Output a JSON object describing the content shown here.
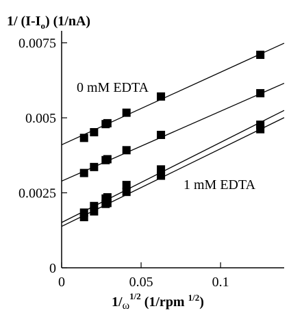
{
  "chart_data": {
    "type": "scatter",
    "ylabel": {
      "main": "1/ (I-I",
      "sub": "o",
      "rest": ") (1/nA)"
    },
    "xlabel": {
      "main": "1/",
      "omega": "ω",
      "sup1": "1/2",
      "rest": " (1/rpm ",
      "sup2": "1/2",
      "close": ")"
    },
    "x_tick_labels": [
      "0",
      "0.05",
      "0.1"
    ],
    "x_ticks": [
      0,
      0.05,
      0.1
    ],
    "y_tick_labels": [
      "0",
      "0.0025",
      "0.005",
      "0.0075"
    ],
    "y_ticks": [
      0,
      0.0025,
      0.005,
      0.0075
    ],
    "xlim": [
      0,
      0.14
    ],
    "ylim": [
      0,
      0.0079
    ],
    "annotations": {
      "top": "0 mM EDTA",
      "bottom": "1 mM EDTA"
    },
    "series": [
      {
        "x": [
          0.0141,
          0.0204,
          0.0277,
          0.0288,
          0.0408,
          0.0625,
          0.125
        ],
        "y": [
          0.00433,
          0.00452,
          0.00479,
          0.00482,
          0.00517,
          0.00571,
          0.0071
        ],
        "fit": {
          "intercept": 0.0041,
          "slope": 0.0242
        }
      },
      {
        "x": [
          0.0141,
          0.0204,
          0.0277,
          0.0288,
          0.0408,
          0.0625,
          0.125
        ],
        "y": [
          0.00316,
          0.00336,
          0.00359,
          0.00362,
          0.00392,
          0.00443,
          0.00582
        ],
        "fit": {
          "intercept": 0.00289,
          "slope": 0.0233
        }
      },
      {
        "x": [
          0.0141,
          0.0204,
          0.0277,
          0.0288,
          0.0408,
          0.0625,
          0.125
        ],
        "y": [
          0.00184,
          0.00206,
          0.00231,
          0.00235,
          0.00276,
          0.00328,
          0.00477
        ],
        "fit": {
          "intercept": 0.00151,
          "slope": 0.0267
        }
      },
      {
        "x": [
          0.0141,
          0.0204,
          0.0277,
          0.0288,
          0.0408,
          0.0625,
          0.125
        ],
        "y": [
          0.00169,
          0.00188,
          0.00213,
          0.00216,
          0.00253,
          0.00307,
          0.00462
        ],
        "fit": {
          "intercept": 0.00138,
          "slope": 0.0259
        }
      }
    ]
  }
}
